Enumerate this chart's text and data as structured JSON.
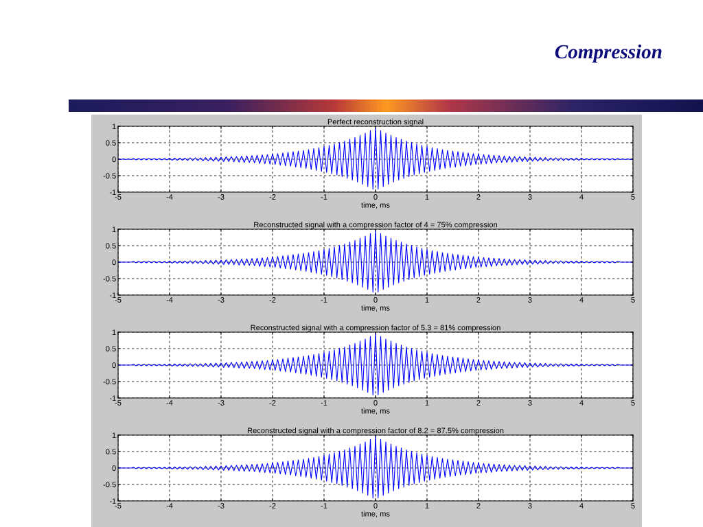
{
  "chart_data": [
    {
      "type": "line",
      "title": "Perfect reconstruction signal",
      "xlabel": "time, ms",
      "annotations": [
        "Compression"
      ],
      "x": [
        -5,
        -4.95,
        -4.9,
        -4.85,
        -4.8,
        -4.75,
        -4.7,
        -4.65,
        -4.6,
        -4.55,
        -4.5,
        -4.45,
        -4.4,
        -4.35,
        -4.3,
        -4.25,
        -4.2,
        -4.15,
        -4.1,
        -4.05,
        -4,
        -3.95,
        -3.9,
        -3.85,
        -3.8,
        -3.75,
        -3.7,
        -3.65,
        -3.6,
        -3.55,
        -3.5,
        -3.45,
        -3.4,
        -3.35,
        -3.3,
        -3.25,
        -3.2,
        -3.15,
        -3.1,
        -3.05,
        -3,
        -2.95,
        -2.9,
        -2.85,
        -2.8,
        -2.75,
        -2.7,
        -2.65,
        -2.6,
        -2.55,
        -2.5,
        -2.45,
        -2.4,
        -2.35,
        -2.3,
        -2.25,
        -2.2,
        -2.15,
        -2.1,
        -2.05,
        -2,
        -1.95,
        -1.9,
        -1.85,
        -1.8,
        -1.75,
        -1.7,
        -1.65,
        -1.6,
        -1.55,
        -1.5,
        -1.45,
        -1.4,
        -1.35,
        -1.3,
        -1.25,
        -1.2,
        -1.15,
        -1.1,
        -1.05,
        -1,
        -0.95,
        -0.9,
        -0.85,
        -0.8,
        -0.75,
        -0.7,
        -0.65,
        -0.6,
        -0.55,
        -0.5,
        -0.45,
        -0.4,
        -0.35,
        -0.3,
        -0.25,
        -0.2,
        -0.15,
        -0.1,
        -0.05,
        0,
        0.05,
        0.1,
        0.15,
        0.2,
        0.25,
        0.3,
        0.35,
        0.4,
        0.45,
        0.5,
        0.55,
        0.6,
        0.65,
        0.7,
        0.75,
        0.8,
        0.85,
        0.9,
        0.95,
        1,
        1.05,
        1.1,
        1.15,
        1.2,
        1.25,
        1.3,
        1.35,
        1.4,
        1.45,
        1.5,
        1.55,
        1.6,
        1.65,
        1.7,
        1.75,
        1.8,
        1.85,
        1.9,
        1.95,
        2,
        2.05,
        2.1,
        2.15,
        2.2,
        2.25,
        2.3,
        2.35,
        2.4,
        2.45,
        2.5,
        2.55,
        2.6,
        2.65,
        2.7,
        2.75,
        2.8,
        2.85,
        2.9,
        2.95,
        3,
        3.05,
        3.1,
        3.15,
        3.2,
        3.25,
        3.3,
        3.35,
        3.4,
        3.45,
        3.5,
        3.55,
        3.6,
        3.65,
        3.7,
        3.75,
        3.8,
        3.85,
        3.9,
        3.95,
        4,
        4.05,
        4.1,
        4.15,
        4.2,
        4.25,
        4.3,
        4.35,
        4.4,
        4.45,
        4.5,
        4.55,
        4.6,
        4.65,
        4.7,
        4.75,
        4.8,
        4.85,
        4.9,
        4.95,
        5
      ],
      "series": [
        {
          "color": "#0000ff",
          "values": [
            0.01,
            -0.01,
            0.01,
            -0.01,
            0.01,
            -0.01,
            0.02,
            -0.02,
            0.02,
            -0.02,
            0.02,
            -0.02,
            0.02,
            -0.02,
            0.02,
            -0.02,
            0.02,
            -0.02,
            0.02,
            -0.02,
            0.03,
            -0.03,
            0.03,
            -0.03,
            0.03,
            -0.03,
            0.03,
            -0.04,
            0.04,
            -0.04,
            0.04,
            -0.04,
            0.04,
            -0.05,
            0.05,
            -0.05,
            0.05,
            -0.06,
            0.06,
            -0.06,
            0.06,
            -0.07,
            0.07,
            -0.07,
            0.08,
            -0.08,
            0.08,
            -0.09,
            0.09,
            -0.1,
            0.1,
            -0.1,
            0.11,
            -0.11,
            0.12,
            -0.13,
            0.13,
            -0.14,
            0.14,
            -0.15,
            0.16,
            -0.16,
            0.17,
            -0.18,
            0.19,
            -0.2,
            0.21,
            -0.21,
            0.23,
            -0.24,
            0.25,
            -0.26,
            0.27,
            -0.28,
            0.29,
            -0.31,
            0.32,
            -0.34,
            0.35,
            -0.37,
            0.39,
            -0.4,
            0.42,
            -0.44,
            0.46,
            -0.48,
            0.51,
            -0.53,
            0.55,
            -0.58,
            0.61,
            -0.63,
            0.66,
            -0.69,
            0.73,
            -0.76,
            0.79,
            -0.83,
            0.87,
            -0.91,
            0.95,
            -0.91,
            0.87,
            -0.83,
            0.79,
            -0.76,
            0.73,
            -0.69,
            0.66,
            -0.63,
            0.61,
            -0.58,
            0.55,
            -0.53,
            0.51,
            -0.48,
            0.46,
            -0.44,
            0.42,
            -0.4,
            0.39,
            -0.37,
            0.35,
            -0.34,
            0.32,
            -0.31,
            0.29,
            -0.28,
            0.27,
            -0.26,
            0.25,
            -0.24,
            0.23,
            -0.21,
            0.21,
            -0.2,
            0.19,
            -0.18,
            0.17,
            -0.16,
            0.16,
            -0.15,
            0.14,
            -0.14,
            0.13,
            -0.13,
            0.12,
            -0.11,
            0.11,
            -0.1,
            0.1,
            -0.1,
            0.09,
            -0.09,
            0.08,
            -0.08,
            0.08,
            -0.07,
            0.07,
            -0.07,
            0.06,
            -0.06,
            0.06,
            -0.06,
            0.05,
            -0.05,
            0.05,
            -0.05,
            0.04,
            -0.04,
            0.04,
            -0.04,
            0.04,
            -0.04,
            0.03,
            -0.03,
            0.03,
            -0.03,
            0.03,
            -0.03,
            0.03,
            -0.02,
            0.02,
            -0.02,
            0.02,
            -0.02,
            0.02,
            -0.02,
            0.02,
            -0.02,
            0.02,
            -0.02,
            0.02,
            -0.02,
            0.02,
            -0.01,
            0.01,
            -0.01,
            0.01,
            -0.01,
            0.01
          ]
        }
      ],
      "xlim": [
        -5,
        5
      ],
      "ylim": [
        -1,
        1
      ],
      "xticks": [
        -5,
        -4,
        -3,
        -2,
        -1,
        0,
        1,
        2,
        3,
        4,
        5
      ],
      "yticks": [
        -1,
        -0.5,
        0,
        0.5,
        1
      ],
      "grid": true
    },
    {
      "type": "line",
      "title": "Reconstructed signal with a compression factor of 4 = 75% compression",
      "xlabel": "time, ms",
      "x": [
        -5,
        -4.95,
        -4.9,
        -4.85,
        -4.8,
        -4.75,
        -4.7,
        -4.65,
        -4.6,
        -4.55,
        -4.5,
        -4.45,
        -4.4,
        -4.35,
        -4.3,
        -4.25,
        -4.2,
        -4.15,
        -4.1,
        -4.05,
        -4,
        -3.95,
        -3.9,
        -3.85,
        -3.8,
        -3.75,
        -3.7,
        -3.65,
        -3.6,
        -3.55,
        -3.5,
        -3.45,
        -3.4,
        -3.35,
        -3.3,
        -3.25,
        -3.2,
        -3.15,
        -3.1,
        -3.05,
        -3,
        -2.95,
        -2.9,
        -2.85,
        -2.8,
        -2.75,
        -2.7,
        -2.65,
        -2.6,
        -2.55,
        -2.5,
        -2.45,
        -2.4,
        -2.35,
        -2.3,
        -2.25,
        -2.2,
        -2.15,
        -2.1,
        -2.05,
        -2,
        -1.95,
        -1.9,
        -1.85,
        -1.8,
        -1.75,
        -1.7,
        -1.65,
        -1.6,
        -1.55,
        -1.5,
        -1.45,
        -1.4,
        -1.35,
        -1.3,
        -1.25,
        -1.2,
        -1.15,
        -1.1,
        -1.05,
        -1,
        -0.95,
        -0.9,
        -0.85,
        -0.8,
        -0.75,
        -0.7,
        -0.65,
        -0.6,
        -0.55,
        -0.5,
        -0.45,
        -0.4,
        -0.35,
        -0.3,
        -0.25,
        -0.2,
        -0.15,
        -0.1,
        -0.05,
        0,
        0.05,
        0.1,
        0.15,
        0.2,
        0.25,
        0.3,
        0.35,
        0.4,
        0.45,
        0.5,
        0.55,
        0.6,
        0.65,
        0.7,
        0.75,
        0.8,
        0.85,
        0.9,
        0.95,
        1,
        1.05,
        1.1,
        1.15,
        1.2,
        1.25,
        1.3,
        1.35,
        1.4,
        1.45,
        1.5,
        1.55,
        1.6,
        1.65,
        1.7,
        1.75,
        1.8,
        1.85,
        1.9,
        1.95,
        2,
        2.05,
        2.1,
        2.15,
        2.2,
        2.25,
        2.3,
        2.35,
        2.4,
        2.45,
        2.5,
        2.55,
        2.6,
        2.65,
        2.7,
        2.75,
        2.8,
        2.85,
        2.9,
        2.95,
        3,
        3.05,
        3.1,
        3.15,
        3.2,
        3.25,
        3.3,
        3.35,
        3.4,
        3.45,
        3.5,
        3.55,
        3.6,
        3.65,
        3.7,
        3.75,
        3.8,
        3.85,
        3.9,
        3.95,
        4,
        4.05,
        4.1,
        4.15,
        4.2,
        4.25,
        4.3,
        4.35,
        4.4,
        4.45,
        4.5,
        4.55,
        4.6,
        4.65,
        4.7,
        4.75,
        4.8,
        4.85,
        4.9,
        4.95,
        5
      ],
      "series": [
        {
          "color": "#0000ff",
          "values": [
            0,
            0,
            0,
            0,
            0,
            0,
            0.02,
            -0.02,
            0.02,
            -0.02,
            0.02,
            -0.02,
            0.02,
            -0.02,
            0.02,
            -0.02,
            0.02,
            -0.02,
            0.02,
            -0.02,
            0.03,
            -0.03,
            0.03,
            -0.03,
            0.03,
            -0.03,
            0.03,
            -0.04,
            0.04,
            -0.04,
            0.04,
            -0.04,
            0.04,
            -0.05,
            0.05,
            -0.05,
            0.05,
            -0.06,
            0.06,
            -0.06,
            0.06,
            -0.07,
            0.07,
            -0.07,
            0.08,
            -0.08,
            0.08,
            -0.09,
            0.09,
            -0.1,
            0.1,
            -0.1,
            0.11,
            -0.11,
            0.12,
            -0.13,
            0.13,
            -0.14,
            0.14,
            -0.15,
            0.16,
            -0.16,
            0.17,
            -0.18,
            0.19,
            -0.2,
            0.21,
            -0.21,
            0.23,
            -0.24,
            0.25,
            -0.26,
            0.27,
            -0.28,
            0.29,
            -0.31,
            0.32,
            -0.34,
            0.35,
            -0.37,
            0.39,
            -0.4,
            0.42,
            -0.44,
            0.46,
            -0.48,
            0.51,
            -0.53,
            0.55,
            -0.58,
            0.61,
            -0.63,
            0.66,
            -0.69,
            0.73,
            -0.76,
            0.79,
            -0.83,
            0.87,
            -0.91,
            0.95,
            -0.91,
            0.87,
            -0.83,
            0.79,
            -0.76,
            0.73,
            -0.69,
            0.66,
            -0.63,
            0.61,
            -0.58,
            0.55,
            -0.53,
            0.51,
            -0.48,
            0.46,
            -0.44,
            0.42,
            -0.4,
            0.39,
            -0.37,
            0.35,
            -0.34,
            0.32,
            -0.31,
            0.29,
            -0.28,
            0.27,
            -0.26,
            0.25,
            -0.24,
            0.23,
            -0.21,
            0.21,
            -0.2,
            0.19,
            -0.18,
            0.17,
            -0.16,
            0.16,
            -0.15,
            0.14,
            -0.14,
            0.13,
            -0.13,
            0.12,
            -0.11,
            0.11,
            -0.1,
            0.1,
            -0.1,
            0.09,
            -0.09,
            0.08,
            -0.08,
            0.08,
            -0.07,
            0.07,
            -0.07,
            0.06,
            -0.06,
            0.06,
            -0.06,
            0.05,
            -0.05,
            0.05,
            -0.05,
            0.04,
            -0.04,
            0.04,
            -0.04,
            0.04,
            -0.04,
            0.03,
            -0.03,
            0.03,
            -0.03,
            0.03,
            -0.03,
            0.03,
            -0.02,
            0.02,
            -0.02,
            0.02,
            -0.02,
            0.02,
            -0.02,
            0.02,
            -0.02,
            0.02,
            -0.02,
            0.02,
            -0.02,
            0.02,
            0,
            0,
            0,
            0,
            0,
            0
          ]
        }
      ],
      "xlim": [
        -5,
        5
      ],
      "ylim": [
        -1,
        1
      ],
      "xticks": [
        -5,
        -4,
        -3,
        -2,
        -1,
        0,
        1,
        2,
        3,
        4,
        5
      ],
      "yticks": [
        -1,
        -0.5,
        0,
        0.5,
        1
      ],
      "grid": true
    },
    {
      "type": "line",
      "title": "Reconstructed signal with a compression factor of 5.3 = 81% compression",
      "xlabel": "time, ms",
      "x": [
        -5,
        -4.95,
        -4.9,
        -4.85,
        -4.8,
        -4.75,
        -4.7,
        -4.65,
        -4.6,
        -4.55,
        -4.5,
        -4.45,
        -4.4,
        -4.35,
        -4.3,
        -4.25,
        -4.2,
        -4.15,
        -4.1,
        -4.05,
        -4,
        -3.95,
        -3.9,
        -3.85,
        -3.8,
        -3.75,
        -3.7,
        -3.65,
        -3.6,
        -3.55,
        -3.5,
        -3.45,
        -3.4,
        -3.35,
        -3.3,
        -3.25,
        -3.2,
        -3.15,
        -3.1,
        -3.05,
        -3,
        -2.95,
        -2.9,
        -2.85,
        -2.8,
        -2.75,
        -2.7,
        -2.65,
        -2.6,
        -2.55,
        -2.5,
        -2.45,
        -2.4,
        -2.35,
        -2.3,
        -2.25,
        -2.2,
        -2.15,
        -2.1,
        -2.05,
        -2,
        -1.95,
        -1.9,
        -1.85,
        -1.8,
        -1.75,
        -1.7,
        -1.65,
        -1.6,
        -1.55,
        -1.5,
        -1.45,
        -1.4,
        -1.35,
        -1.3,
        -1.25,
        -1.2,
        -1.15,
        -1.1,
        -1.05,
        -1,
        -0.95,
        -0.9,
        -0.85,
        -0.8,
        -0.75,
        -0.7,
        -0.65,
        -0.6,
        -0.55,
        -0.5,
        -0.45,
        -0.4,
        -0.35,
        -0.3,
        -0.25,
        -0.2,
        -0.15,
        -0.1,
        -0.05,
        0,
        0.05,
        0.1,
        0.15,
        0.2,
        0.25,
        0.3,
        0.35,
        0.4,
        0.45,
        0.5,
        0.55,
        0.6,
        0.65,
        0.7,
        0.75,
        0.8,
        0.85,
        0.9,
        0.95,
        1,
        1.05,
        1.1,
        1.15,
        1.2,
        1.25,
        1.3,
        1.35,
        1.4,
        1.45,
        1.5,
        1.55,
        1.6,
        1.65,
        1.7,
        1.75,
        1.8,
        1.85,
        1.9,
        1.95,
        2,
        2.05,
        2.1,
        2.15,
        2.2,
        2.25,
        2.3,
        2.35,
        2.4,
        2.45,
        2.5,
        2.55,
        2.6,
        2.65,
        2.7,
        2.75,
        2.8,
        2.85,
        2.9,
        2.95,
        3,
        3.05,
        3.1,
        3.15,
        3.2,
        3.25,
        3.3,
        3.35,
        3.4,
        3.45,
        3.5,
        3.55,
        3.6,
        3.65,
        3.7,
        3.75,
        3.8,
        3.85,
        3.9,
        3.95,
        4,
        4.05,
        4.1,
        4.15,
        4.2,
        4.25,
        4.3,
        4.35,
        4.4,
        4.45,
        4.5,
        4.55,
        4.6,
        4.65,
        4.7,
        4.75,
        4.8,
        4.85,
        4.9,
        4.95,
        5
      ],
      "series": [
        {
          "color": "#0000ff",
          "values": [
            0,
            0,
            0,
            0,
            0,
            0,
            0.02,
            -0.02,
            0.02,
            -0.02,
            0.02,
            -0.02,
            0.02,
            -0.02,
            0.02,
            -0.02,
            0.02,
            -0.02,
            0.02,
            -0.02,
            0.03,
            -0.03,
            0.03,
            -0.03,
            0.03,
            -0.03,
            0.03,
            -0.04,
            0.04,
            -0.04,
            0.04,
            -0.04,
            0.04,
            -0.05,
            0.05,
            -0.05,
            0.05,
            -0.06,
            0.06,
            -0.06,
            0.06,
            -0.07,
            0.07,
            -0.07,
            0.08,
            -0.08,
            0.08,
            -0.09,
            0.09,
            -0.1,
            0.1,
            -0.1,
            0.11,
            -0.11,
            0.12,
            -0.13,
            0.13,
            -0.14,
            0.14,
            -0.15,
            0.16,
            -0.16,
            0.17,
            -0.18,
            0.19,
            -0.2,
            0.21,
            -0.21,
            0.23,
            -0.24,
            0.25,
            -0.26,
            0.27,
            -0.28,
            0.29,
            -0.31,
            0.32,
            -0.34,
            0.35,
            -0.37,
            0.39,
            -0.4,
            0.42,
            -0.44,
            0.46,
            -0.48,
            0.51,
            -0.53,
            0.55,
            -0.58,
            0.61,
            -0.63,
            0.66,
            -0.69,
            0.73,
            -0.76,
            0.79,
            -0.83,
            0.87,
            -0.91,
            0.95,
            -0.91,
            0.87,
            -0.83,
            0.79,
            -0.76,
            0.73,
            -0.69,
            0.66,
            -0.63,
            0.61,
            -0.58,
            0.55,
            -0.53,
            0.51,
            -0.48,
            0.46,
            -0.44,
            0.42,
            -0.4,
            0.39,
            -0.37,
            0.35,
            -0.34,
            0.32,
            -0.31,
            0.29,
            -0.28,
            0.27,
            -0.26,
            0.25,
            -0.24,
            0.23,
            -0.21,
            0.21,
            -0.2,
            0.19,
            -0.18,
            0.17,
            -0.16,
            0.16,
            -0.15,
            0.14,
            -0.14,
            0.13,
            -0.13,
            0.12,
            -0.11,
            0.11,
            -0.1,
            0.1,
            -0.1,
            0.09,
            -0.09,
            0.08,
            -0.08,
            0.08,
            -0.07,
            0.07,
            -0.07,
            0.06,
            -0.06,
            0.06,
            -0.06,
            0.05,
            -0.05,
            0.05,
            -0.05,
            0.04,
            -0.04,
            0.04,
            -0.04,
            0.04,
            -0.04,
            0.03,
            -0.03,
            0.03,
            -0.03,
            0.03,
            -0.03,
            0.03,
            -0.02,
            0.02,
            -0.02,
            0.02,
            -0.02,
            0.02,
            -0.02,
            0.02,
            -0.02,
            0.02,
            -0.02,
            0.02,
            -0.02,
            0.02,
            0,
            0,
            0,
            0,
            0,
            0
          ]
        }
      ],
      "xlim": [
        -5,
        5
      ],
      "ylim": [
        -1,
        1
      ],
      "xticks": [
        -5,
        -4,
        -3,
        -2,
        -1,
        0,
        1,
        2,
        3,
        4,
        5
      ],
      "yticks": [
        -1,
        -0.5,
        0,
        0.5,
        1
      ],
      "grid": true
    },
    {
      "type": "line",
      "title": "Reconstructed signal with a compression factor of 8.2 = 87.5% compression",
      "xlabel": "time, ms",
      "x": [
        -5,
        -4.95,
        -4.9,
        -4.85,
        -4.8,
        -4.75,
        -4.7,
        -4.65,
        -4.6,
        -4.55,
        -4.5,
        -4.45,
        -4.4,
        -4.35,
        -4.3,
        -4.25,
        -4.2,
        -4.15,
        -4.1,
        -4.05,
        -4,
        -3.95,
        -3.9,
        -3.85,
        -3.8,
        -3.75,
        -3.7,
        -3.65,
        -3.6,
        -3.55,
        -3.5,
        -3.45,
        -3.4,
        -3.35,
        -3.3,
        -3.25,
        -3.2,
        -3.15,
        -3.1,
        -3.05,
        -3,
        -2.95,
        -2.9,
        -2.85,
        -2.8,
        -2.75,
        -2.7,
        -2.65,
        -2.6,
        -2.55,
        -2.5,
        -2.45,
        -2.4,
        -2.35,
        -2.3,
        -2.25,
        -2.2,
        -2.15,
        -2.1,
        -2.05,
        -2,
        -1.95,
        -1.9,
        -1.85,
        -1.8,
        -1.75,
        -1.7,
        -1.65,
        -1.6,
        -1.55,
        -1.5,
        -1.45,
        -1.4,
        -1.35,
        -1.3,
        -1.25,
        -1.2,
        -1.15,
        -1.1,
        -1.05,
        -1,
        -0.95,
        -0.9,
        -0.85,
        -0.8,
        -0.75,
        -0.7,
        -0.65,
        -0.6,
        -0.55,
        -0.5,
        -0.45,
        -0.4,
        -0.35,
        -0.3,
        -0.25,
        -0.2,
        -0.15,
        -0.1,
        -0.05,
        0,
        0.05,
        0.1,
        0.15,
        0.2,
        0.25,
        0.3,
        0.35,
        0.4,
        0.45,
        0.5,
        0.55,
        0.6,
        0.65,
        0.7,
        0.75,
        0.8,
        0.85,
        0.9,
        0.95,
        1,
        1.05,
        1.1,
        1.15,
        1.2,
        1.25,
        1.3,
        1.35,
        1.4,
        1.45,
        1.5,
        1.55,
        1.6,
        1.65,
        1.7,
        1.75,
        1.8,
        1.85,
        1.9,
        1.95,
        2,
        2.05,
        2.1,
        2.15,
        2.2,
        2.25,
        2.3,
        2.35,
        2.4,
        2.45,
        2.5,
        2.55,
        2.6,
        2.65,
        2.7,
        2.75,
        2.8,
        2.85,
        2.9,
        2.95,
        3,
        3.05,
        3.1,
        3.15,
        3.2,
        3.25,
        3.3,
        3.35,
        3.4,
        3.45,
        3.5,
        3.55,
        3.6,
        3.65,
        3.7,
        3.75,
        3.8,
        3.85,
        3.9,
        3.95,
        4,
        4.05,
        4.1,
        4.15,
        4.2,
        4.25,
        4.3,
        4.35,
        4.4,
        4.45,
        4.5,
        4.55,
        4.6,
        4.65,
        4.7,
        4.75,
        4.8,
        4.85,
        4.9,
        4.95,
        5
      ],
      "series": [
        {
          "color": "#0000ff",
          "values": [
            0,
            0,
            0,
            0,
            0,
            0,
            0.02,
            -0.02,
            0.02,
            -0.02,
            0.02,
            -0.02,
            0.02,
            -0.02,
            0.02,
            -0.02,
            0.02,
            -0.02,
            0.02,
            -0.02,
            0.03,
            -0.03,
            0.03,
            -0.03,
            0.03,
            -0.03,
            0.03,
            -0.04,
            0.04,
            -0.04,
            0.04,
            -0.04,
            0.04,
            -0.05,
            0.05,
            -0.05,
            0.05,
            -0.06,
            0.06,
            -0.06,
            0.06,
            -0.07,
            0.07,
            -0.07,
            0.08,
            -0.08,
            0.08,
            -0.09,
            0.09,
            -0.1,
            0.1,
            -0.1,
            0.11,
            -0.11,
            0.12,
            -0.13,
            0.13,
            -0.14,
            0.14,
            -0.15,
            0.16,
            -0.16,
            0.17,
            -0.18,
            0.19,
            -0.2,
            0.21,
            -0.21,
            0.23,
            -0.24,
            0.25,
            -0.26,
            0.27,
            -0.28,
            0.29,
            -0.31,
            0.32,
            -0.34,
            0.35,
            -0.37,
            0.39,
            -0.4,
            0.42,
            -0.44,
            0.46,
            -0.48,
            0.51,
            -0.53,
            0.55,
            -0.58,
            0.61,
            -0.63,
            0.66,
            -0.69,
            0.73,
            -0.76,
            0.79,
            -0.83,
            0.87,
            -0.91,
            0.95,
            -0.91,
            0.87,
            -0.83,
            0.79,
            -0.76,
            0.73,
            -0.69,
            0.66,
            -0.63,
            0.61,
            -0.58,
            0.55,
            -0.53,
            0.51,
            -0.48,
            0.46,
            -0.44,
            0.42,
            -0.4,
            0.39,
            -0.37,
            0.35,
            -0.34,
            0.32,
            -0.31,
            0.29,
            -0.28,
            0.27,
            -0.26,
            0.25,
            -0.24,
            0.23,
            -0.21,
            0.21,
            -0.2,
            0.19,
            -0.18,
            0.17,
            -0.16,
            0.16,
            -0.15,
            0.14,
            -0.14,
            0.13,
            -0.13,
            0.12,
            -0.11,
            0.11,
            -0.1,
            0.1,
            -0.1,
            0.09,
            -0.09,
            0.08,
            -0.08,
            0.08,
            -0.07,
            0.07,
            -0.07,
            0.06,
            -0.06,
            0.06,
            -0.06,
            0.05,
            -0.05,
            0.05,
            -0.05,
            0.04,
            -0.04,
            0.04,
            -0.04,
            0.04,
            -0.04,
            0.03,
            -0.03,
            0.03,
            -0.03,
            0.03,
            -0.03,
            0.03,
            -0.02,
            0.02,
            -0.02,
            0.02,
            -0.02,
            0.02,
            -0.02,
            0.02,
            -0.02,
            0.02,
            -0.02,
            0.02,
            -0.02,
            0.02,
            0,
            0,
            0,
            0,
            0,
            0
          ]
        }
      ],
      "xlim": [
        -5,
        5
      ],
      "ylim": [
        -1,
        1
      ],
      "xticks": [
        -5,
        -4,
        -3,
        -2,
        -1,
        0,
        1,
        2,
        3,
        4,
        5
      ],
      "yticks": [
        -1,
        -0.5,
        0,
        0.5,
        1
      ],
      "grid": true
    }
  ]
}
